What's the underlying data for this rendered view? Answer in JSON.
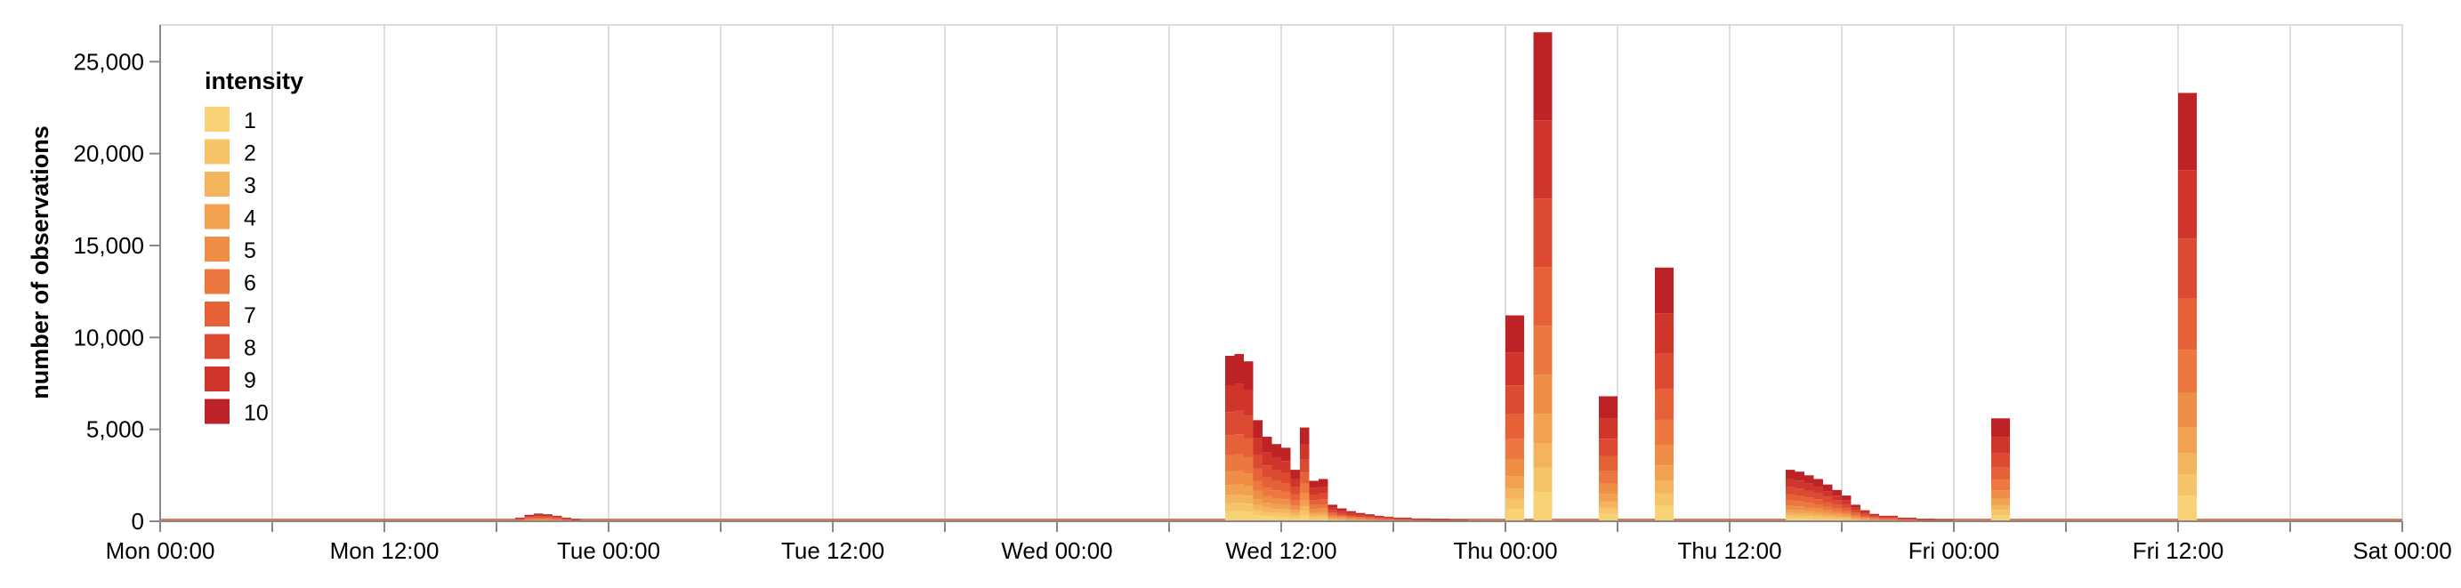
{
  "chart_data": {
    "type": "area",
    "stacked": true,
    "ylabel": "number of observations",
    "xlabel": "",
    "x_ticks": [
      "Mon 00:00",
      "Mon 12:00",
      "Tue 00:00",
      "Tue 12:00",
      "Wed 00:00",
      "Wed 12:00",
      "Thu 00:00",
      "Thu 12:00",
      "Fri 00:00",
      "Fri 12:00",
      "Sat 00:00"
    ],
    "xlim_hours": [
      0,
      120
    ],
    "ylim": [
      0,
      27000
    ],
    "y_ticks": [
      0,
      5000,
      10000,
      15000,
      20000,
      25000
    ],
    "y_tick_labels": [
      "0",
      "5,000",
      "10,000",
      "15,000",
      "20,000",
      "25,000"
    ],
    "grid": "vertical",
    "legend": {
      "title": "intensity",
      "placement": "top-left",
      "labels": [
        "1",
        "2",
        "3",
        "4",
        "5",
        "6",
        "7",
        "8",
        "9",
        "10"
      ],
      "colors": [
        "#f8d277",
        "#f6c469",
        "#f4b35d",
        "#f2a151",
        "#ef8e47",
        "#ec783f",
        "#e66137",
        "#dc4a31",
        "#cf352b",
        "#bc2226"
      ]
    },
    "baseline_color": "#e07a50",
    "series_intensities": [
      1,
      2,
      3,
      4,
      5,
      6,
      7,
      8,
      9,
      10
    ],
    "bursts": [
      {
        "t_hours": [
          19.0,
          19.5,
          20.0,
          20.5,
          21.0,
          21.5,
          22.0
        ],
        "totals": [
          200,
          350,
          420,
          380,
          300,
          200,
          120
        ]
      },
      {
        "t_hours": [
          57.0,
          57.5,
          58.0,
          58.5,
          59.0,
          59.5,
          60.0,
          60.5,
          61.0,
          61.5,
          62.0,
          62.5,
          63.0,
          63.5,
          64.0,
          64.5,
          65.0,
          65.5,
          66.0,
          67.0,
          68.0,
          69.0,
          70.0
        ],
        "totals": [
          9000,
          9100,
          8700,
          5500,
          4600,
          4200,
          4000,
          2800,
          5100,
          2200,
          2300,
          900,
          700,
          550,
          450,
          380,
          300,
          250,
          200,
          150,
          120,
          80,
          50
        ]
      },
      {
        "t_hours": [
          72.0,
          72.5
        ],
        "totals": [
          11200,
          11200
        ]
      },
      {
        "t_hours": [
          73.5,
          74.0
        ],
        "totals": [
          26600,
          26600
        ]
      },
      {
        "t_hours": [
          77.0,
          77.5
        ],
        "totals": [
          6800,
          6800
        ]
      },
      {
        "t_hours": [
          80.0,
          80.5
        ],
        "totals": [
          13800,
          13800
        ]
      },
      {
        "t_hours": [
          87.0,
          87.5,
          88.0,
          88.5,
          89.0,
          89.5,
          90.0,
          90.5,
          91.0,
          91.5,
          92.0,
          93.0,
          94.0,
          95.0,
          96.0
        ],
        "totals": [
          2800,
          2700,
          2500,
          2300,
          2000,
          1700,
          1400,
          900,
          600,
          400,
          300,
          200,
          120,
          80,
          40
        ]
      },
      {
        "t_hours": [
          98.0,
          98.5
        ],
        "totals": [
          5600,
          5600
        ]
      },
      {
        "t_hours": [
          108.0,
          108.5
        ],
        "totals": [
          23300,
          23300
        ]
      }
    ]
  }
}
